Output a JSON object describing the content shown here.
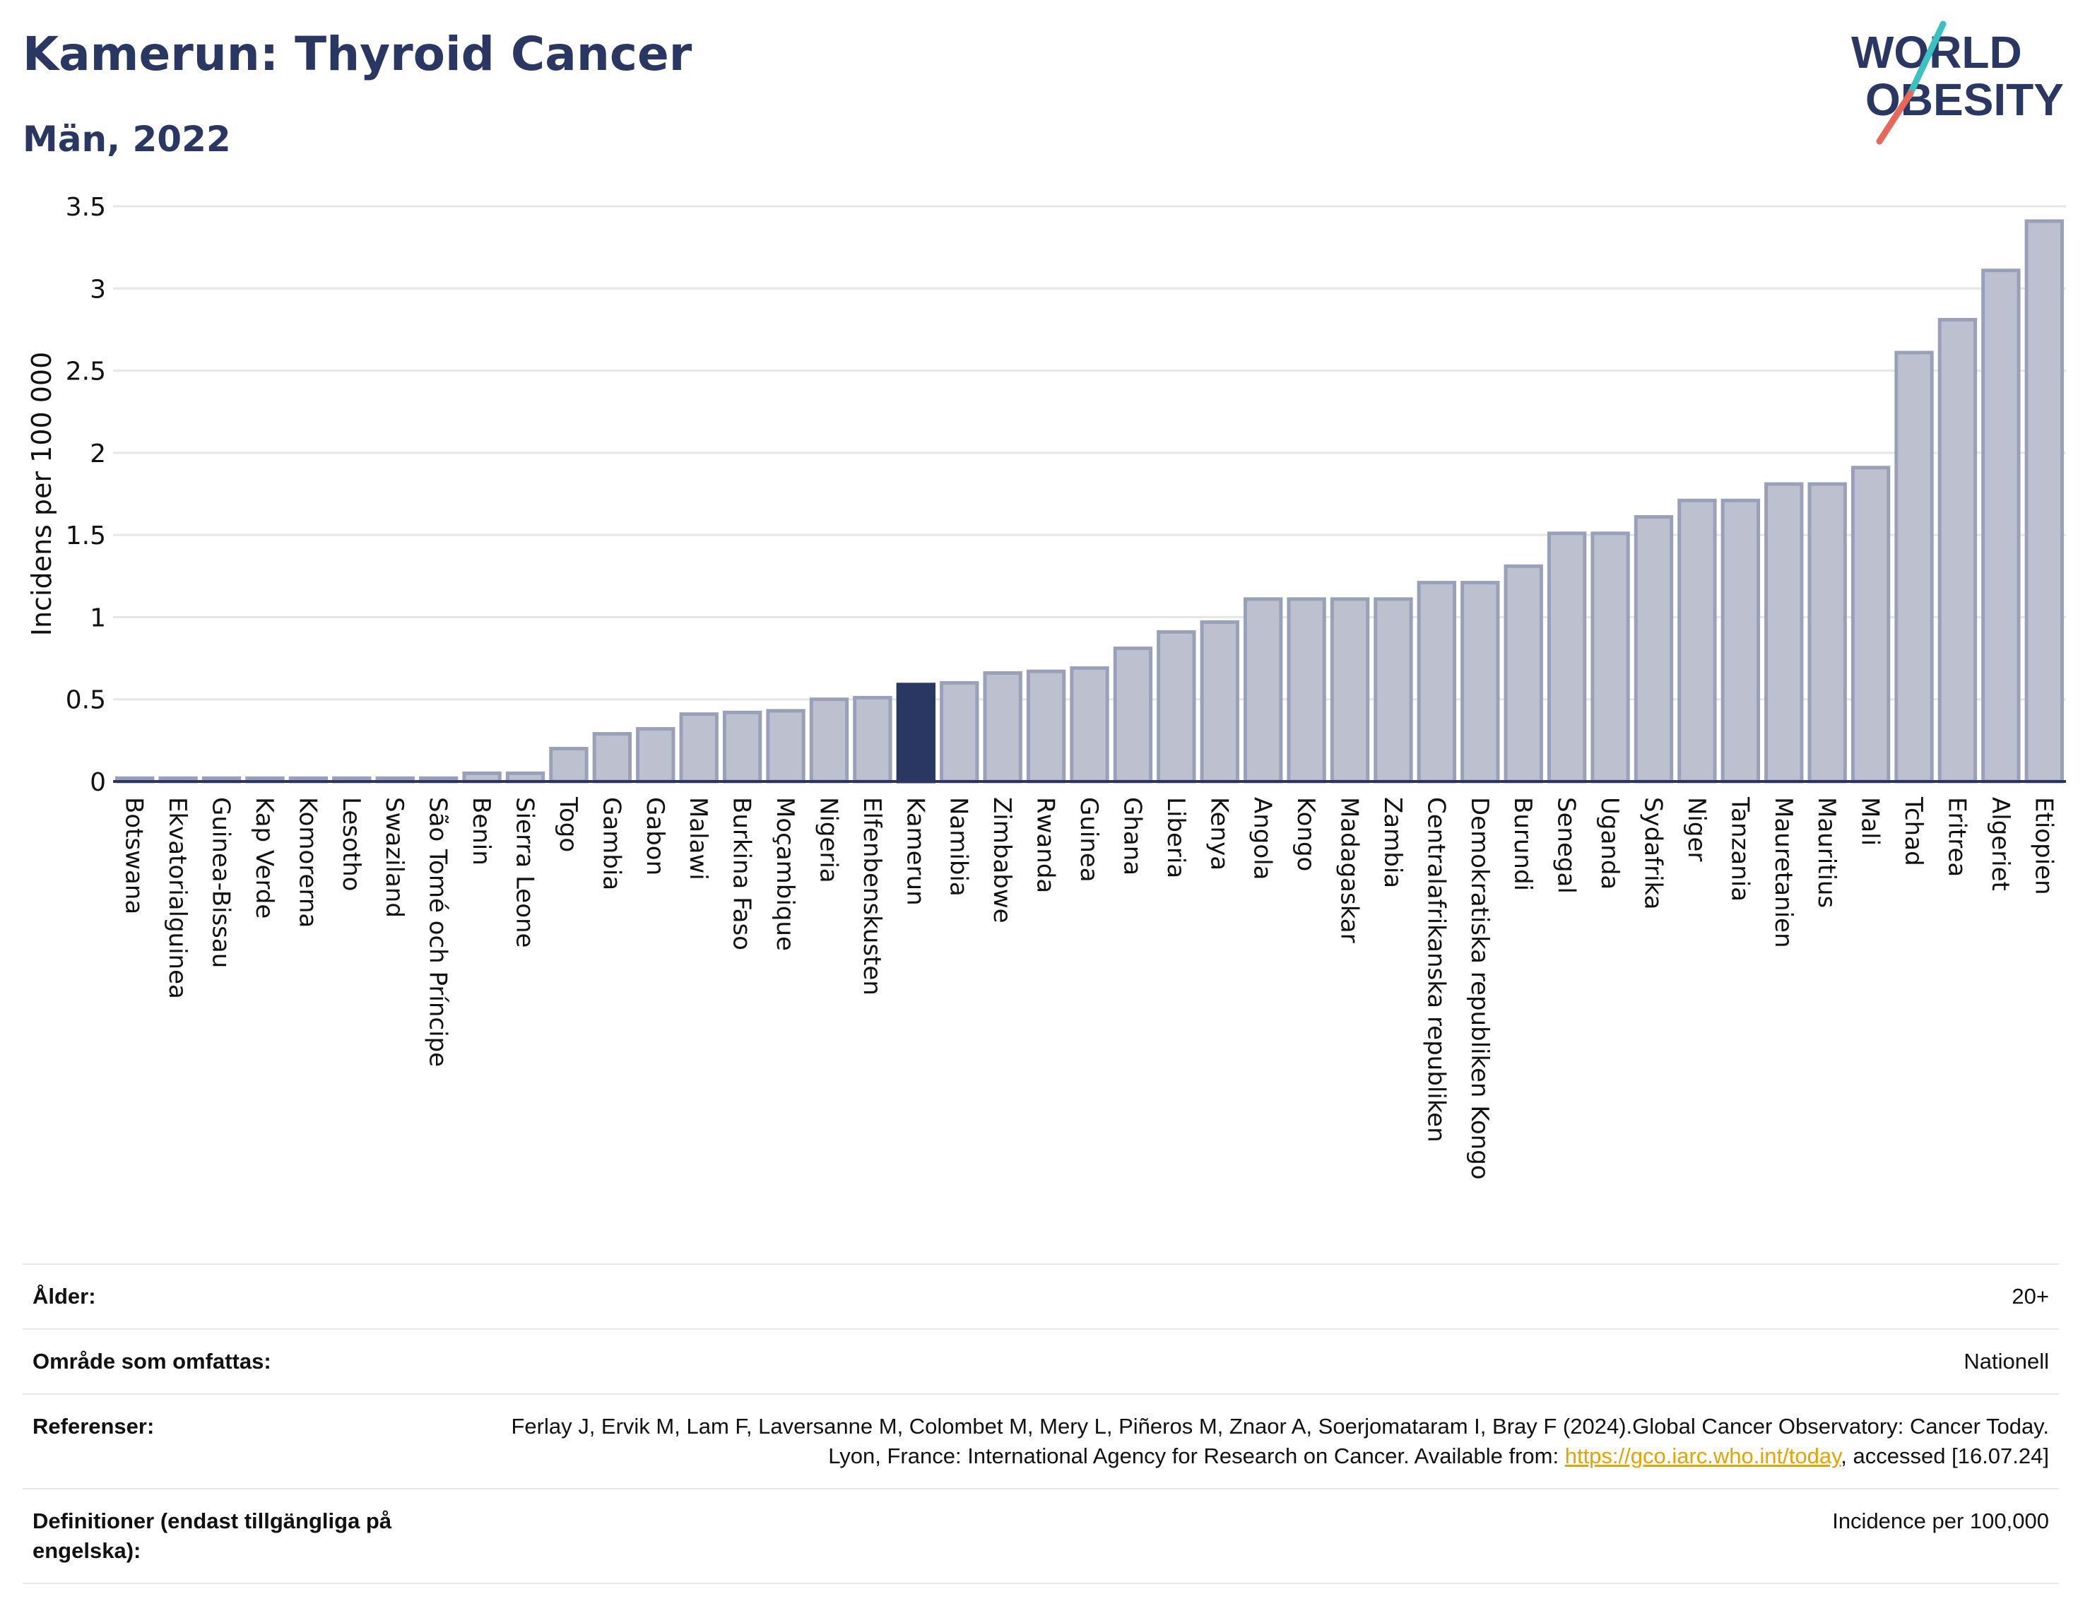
{
  "header": {
    "title": "Kamerun: Thyroid Cancer",
    "subtitle": "Män, 2022"
  },
  "logo": {
    "line1": "WORLD",
    "line2": "OBESITY",
    "colors": {
      "text": "#2b3763",
      "slash_red": "#e8685a",
      "slash_teal": "#3cc0c0"
    }
  },
  "chart_data": {
    "type": "bar",
    "ylabel": "Incidens per 100 000",
    "ylim": [
      0,
      3.5
    ],
    "yticks": [
      0,
      0.5,
      1,
      1.5,
      2,
      2.5,
      3,
      3.5
    ],
    "ytick_labels": [
      "0",
      "0.5",
      "1",
      "1.5",
      "2",
      "2.5",
      "3",
      "3.5"
    ],
    "grid": true,
    "highlight": "Kamerun",
    "colors": {
      "bar": "#bdc1cf",
      "bar_edge": "#9aa0b8",
      "highlight": "#2b3763",
      "grid": "#e6e6e6",
      "axis": "#2b3560"
    },
    "categories": [
      "Botswana",
      "Ekvatorialguinea",
      "Guinea-Bissau",
      "Kap Verde",
      "Komorerna",
      "Lesotho",
      "Swaziland",
      "São Tomé och Príncipe",
      "Benin",
      "Sierra Leone",
      "Togo",
      "Gambia",
      "Gabon",
      "Malawi",
      "Burkina Faso",
      "Moçambique",
      "Nigeria",
      "Elfenbenskusten",
      "Kamerun",
      "Namibia",
      "Zimbabwe",
      "Rwanda",
      "Guinea",
      "Ghana",
      "Liberia",
      "Kenya",
      "Angola",
      "Kongo",
      "Madagaskar",
      "Zambia",
      "Centralafrikanska republiken",
      "Demokratiska republiken Kongo",
      "Burundi",
      "Senegal",
      "Uganda",
      "Sydafrika",
      "Niger",
      "Tanzania",
      "Mauretanien",
      "Mauritius",
      "Mali",
      "Tchad",
      "Eritrea",
      "Algeriet",
      "Etiopien"
    ],
    "values": [
      0.02,
      0.02,
      0.02,
      0.02,
      0.02,
      0.02,
      0.02,
      0.02,
      0.05,
      0.05,
      0.2,
      0.29,
      0.32,
      0.41,
      0.42,
      0.43,
      0.5,
      0.51,
      0.59,
      0.6,
      0.66,
      0.67,
      0.69,
      0.81,
      0.91,
      0.97,
      1.11,
      1.11,
      1.11,
      1.11,
      1.21,
      1.21,
      1.31,
      1.51,
      1.51,
      1.61,
      1.71,
      1.71,
      1.81,
      1.81,
      1.91,
      2.61,
      2.81,
      3.11,
      3.41
    ]
  },
  "info": {
    "rows": [
      {
        "label": "Ålder:",
        "value": "20+"
      },
      {
        "label": "Område som omfattas:",
        "value": "Nationell"
      },
      {
        "label": "Referenser:",
        "value_before": "Ferlay J, Ervik M, Lam F, Laversanne M, Colombet M, Mery L, Piñeros M, Znaor A, Soerjomataram I, Bray F (2024).Global Cancer Observatory: Cancer Today. Lyon, France: International Agency for Research on Cancer. Available from: ",
        "link": "https://gco.iarc.who.int/today",
        "value_after": ", accessed [16.07.24]"
      },
      {
        "label": "Definitioner (endast tillgängliga på engelska):",
        "value": "Incidence per 100,000"
      }
    ]
  }
}
